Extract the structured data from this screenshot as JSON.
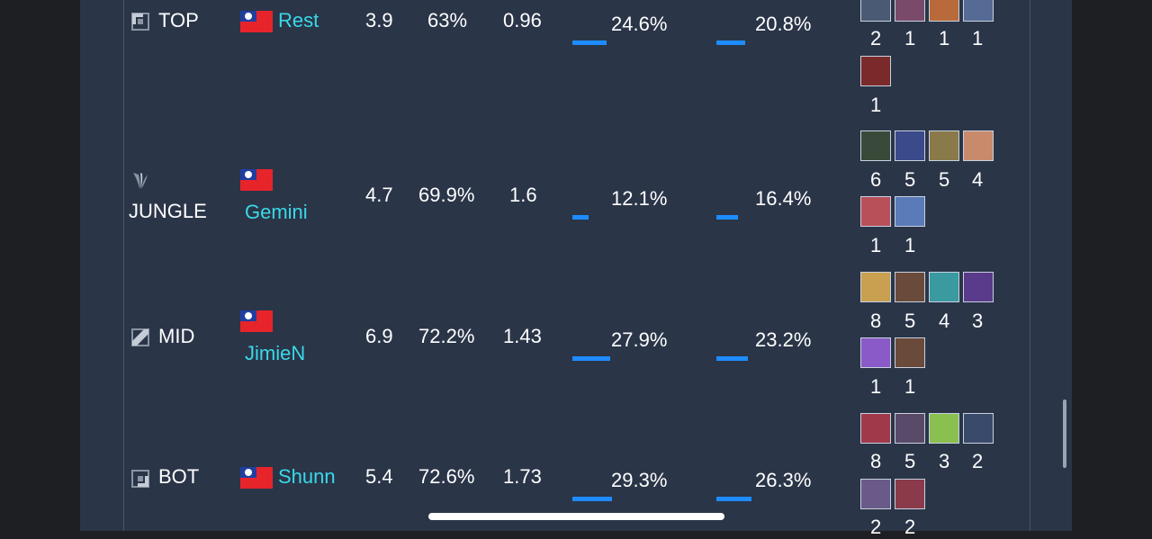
{
  "rows": [
    {
      "role": "TOP",
      "role_icon": "top-lane-icon",
      "player": "Rest",
      "kda": "3.9",
      "winrate": "63%",
      "stat3": "0.96",
      "share1": "24.6%",
      "share1_pct": 24.6,
      "share2": "20.8%",
      "share2_pct": 20.8,
      "champ_counts": [
        "2",
        "1",
        "1",
        "1",
        "1"
      ],
      "champ_colors": [
        "#4a5a75",
        "#7a4a6a",
        "#b86a3a",
        "#556a95",
        "#7a2a2a"
      ]
    },
    {
      "role": "JUNGLE",
      "role_icon": "jungle-icon",
      "player": "Gemini",
      "kda": "4.7",
      "winrate": "69.9%",
      "stat3": "1.6",
      "share1": "12.1%",
      "share1_pct": 12.1,
      "share2": "16.4%",
      "share2_pct": 16.4,
      "champ_counts": [
        "6",
        "5",
        "5",
        "4",
        "1",
        "1"
      ],
      "champ_colors": [
        "#3a4a3a",
        "#3a4a8a",
        "#8a7a4a",
        "#c88a6a",
        "#b8505a",
        "#5a7ab8"
      ]
    },
    {
      "role": "MID",
      "role_icon": "mid-lane-icon",
      "player": "JimieN",
      "kda": "6.9",
      "winrate": "72.2%",
      "stat3": "1.43",
      "share1": "27.9%",
      "share1_pct": 27.9,
      "share2": "23.2%",
      "share2_pct": 23.2,
      "champ_counts": [
        "8",
        "5",
        "4",
        "3",
        "1",
        "1"
      ],
      "champ_colors": [
        "#c8a050",
        "#6a4a3a",
        "#3a9aa0",
        "#5a3a8a",
        "#8a5ac8",
        "#6a4a3a"
      ]
    },
    {
      "role": "BOT",
      "role_icon": "bot-lane-icon",
      "player": "Shunn",
      "kda": "5.4",
      "winrate": "72.6%",
      "stat3": "1.73",
      "share1": "29.3%",
      "share1_pct": 29.3,
      "share2": "26.3%",
      "share2_pct": 26.3,
      "champ_counts": [
        "8",
        "5",
        "3",
        "2",
        "2",
        "2"
      ],
      "champ_colors": [
        "#a03a4a",
        "#5a4a6a",
        "#8ac050",
        "#3a4a6a",
        "#6a5a8a",
        "#8a3a4a"
      ]
    }
  ],
  "colors": {
    "accent_bar": "#1e8cff",
    "player_name": "#3ad8e8",
    "panel_bg": "#2a3548"
  }
}
